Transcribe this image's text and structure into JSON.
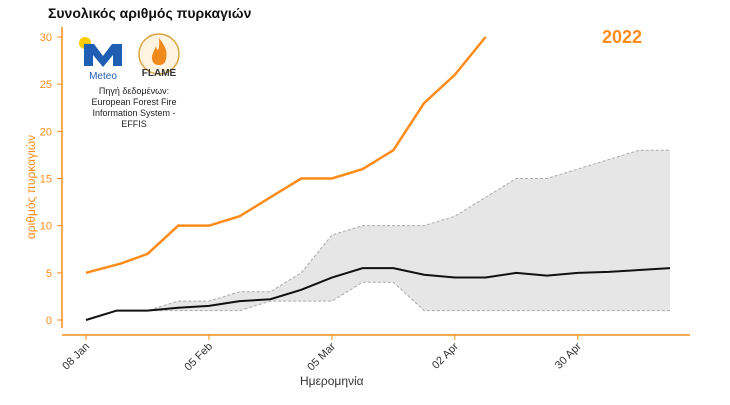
{
  "title": "Συνολικός αριθμός πυρκαγιών",
  "year_label": "2022",
  "logos": {
    "meteo_text": "Meteo",
    "flame_text": "FLAME"
  },
  "source_lines": [
    "Πηγή δεδομένων:",
    "European Forest Fire",
    "Information System -",
    "EFFIS"
  ],
  "colors": {
    "current": "#ff8c1a",
    "mean": "#111111",
    "band": "#e6e6e6",
    "band_edge": "#aaaaaa",
    "axis": "#ff8c1a"
  },
  "chart_data": {
    "type": "line",
    "title": "Συνολικός αριθμός πυρκαγιών",
    "xlabel": "Ημερομηνία",
    "ylabel": "αριθμός πυρκαγιών",
    "ylim": [
      0,
      30
    ],
    "y_ticks": [
      0,
      5,
      10,
      15,
      20,
      25,
      30
    ],
    "x_ticks": [
      "08 Jan",
      "05 Feb",
      "05 Mar",
      "02 Apr",
      "30 Apr"
    ],
    "x_tick_dates": [
      "2022-01-08",
      "2022-02-05",
      "2022-03-05",
      "2022-04-02",
      "2022-04-30"
    ],
    "x_range": [
      "2022-01-08",
      "2022-05-21"
    ],
    "grid": false,
    "series": [
      {
        "name": "2022",
        "x": [
          "2022-01-08",
          "2022-01-16",
          "2022-01-22",
          "2022-01-29",
          "2022-02-05",
          "2022-02-12",
          "2022-02-19",
          "2022-02-26",
          "2022-03-05",
          "2022-03-12",
          "2022-03-19",
          "2022-03-26",
          "2022-04-02",
          "2022-04-09"
        ],
        "values": [
          5,
          6,
          7,
          10,
          10,
          11,
          13,
          15,
          15,
          16,
          18,
          23,
          26,
          30
        ]
      },
      {
        "name": "mean",
        "x": [
          "2022-01-08",
          "2022-01-15",
          "2022-01-22",
          "2022-01-29",
          "2022-02-05",
          "2022-02-12",
          "2022-02-19",
          "2022-02-26",
          "2022-03-05",
          "2022-03-12",
          "2022-03-19",
          "2022-03-26",
          "2022-04-02",
          "2022-04-09",
          "2022-04-16",
          "2022-04-23",
          "2022-04-30",
          "2022-05-07",
          "2022-05-14",
          "2022-05-21"
        ],
        "values": [
          0,
          1,
          1,
          1.3,
          1.5,
          2,
          2.2,
          3.2,
          4.5,
          5.5,
          5.5,
          4.8,
          4.5,
          4.5,
          5,
          4.7,
          5,
          5.1,
          5.3,
          5.5
        ]
      },
      {
        "name": "range_max",
        "x": [
          "2022-01-08",
          "2022-01-15",
          "2022-01-22",
          "2022-01-29",
          "2022-02-05",
          "2022-02-12",
          "2022-02-19",
          "2022-02-26",
          "2022-03-05",
          "2022-03-12",
          "2022-03-19",
          "2022-03-26",
          "2022-04-02",
          "2022-04-09",
          "2022-04-16",
          "2022-04-23",
          "2022-04-30",
          "2022-05-07",
          "2022-05-14",
          "2022-05-21"
        ],
        "values": [
          0,
          1,
          1,
          2,
          2,
          3,
          3,
          5,
          9,
          10,
          10,
          10,
          11,
          13,
          15,
          15,
          16,
          17,
          18,
          18
        ]
      },
      {
        "name": "range_min",
        "x": [
          "2022-01-08",
          "2022-01-15",
          "2022-01-22",
          "2022-01-29",
          "2022-02-05",
          "2022-02-12",
          "2022-02-19",
          "2022-02-26",
          "2022-03-05",
          "2022-03-12",
          "2022-03-19",
          "2022-03-26",
          "2022-04-02",
          "2022-04-09",
          "2022-04-16",
          "2022-04-23",
          "2022-04-30",
          "2022-05-07",
          "2022-05-14",
          "2022-05-21"
        ],
        "values": [
          0,
          1,
          1,
          1,
          1,
          1,
          2,
          2,
          2,
          4,
          4,
          1,
          1,
          1,
          1,
          1,
          1,
          1,
          1,
          1
        ]
      }
    ]
  }
}
